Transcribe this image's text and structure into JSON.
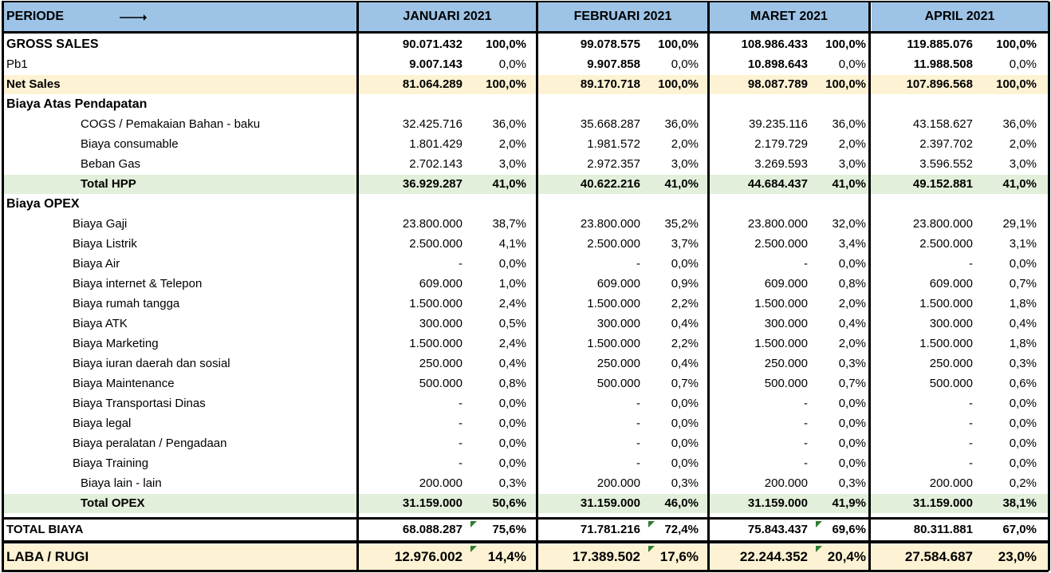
{
  "header": {
    "periode": "PERIODE",
    "months": [
      "JANUARI 2021",
      "FEBRUARI 2021",
      "MARET 2021",
      "APRIL 2021"
    ]
  },
  "rows": [
    {
      "label": "GROSS SALES",
      "style": "bold",
      "bg": "",
      "indent": 0,
      "cells": [
        [
          "90.071.432",
          "100,0%"
        ],
        [
          "99.078.575",
          "100,0%"
        ],
        [
          "108.986.433",
          "100,0%"
        ],
        [
          "119.885.076",
          "100,0%"
        ]
      ]
    },
    {
      "label": "Pb1",
      "style": "normal-boldnum",
      "bg": "",
      "indent": 0,
      "cells": [
        [
          "9.007.143",
          "0,0%"
        ],
        [
          "9.907.858",
          "0,0%"
        ],
        [
          "10.898.643",
          "0,0%"
        ],
        [
          "11.988.508",
          "0,0%"
        ]
      ]
    },
    {
      "label": "Net Sales",
      "style": "bold",
      "bg": "#fdf2d3",
      "indent": 0,
      "cells": [
        [
          "81.064.289",
          "100,0%"
        ],
        [
          "89.170.718",
          "100,0%"
        ],
        [
          "98.087.789",
          "100,0%"
        ],
        [
          "107.896.568",
          "100,0%"
        ]
      ]
    },
    {
      "label": "Biaya Atas Pendapatan",
      "style": "section",
      "bg": "",
      "indent": 0,
      "cells": [
        [
          "",
          ""
        ],
        [
          "",
          ""
        ],
        [
          "",
          ""
        ],
        [
          "",
          ""
        ]
      ]
    },
    {
      "label": "COGS / Pemakaian Bahan - baku",
      "style": "normal",
      "bg": "",
      "indent": 93,
      "cells": [
        [
          "32.425.716",
          "36,0%"
        ],
        [
          "35.668.287",
          "36,0%"
        ],
        [
          "39.235.116",
          "36,0%"
        ],
        [
          "43.158.627",
          "36,0%"
        ]
      ]
    },
    {
      "label": "Biaya consumable",
      "style": "normal",
      "bg": "",
      "indent": 93,
      "cells": [
        [
          "1.801.429",
          "2,0%"
        ],
        [
          "1.981.572",
          "2,0%"
        ],
        [
          "2.179.729",
          "2,0%"
        ],
        [
          "2.397.702",
          "2,0%"
        ]
      ]
    },
    {
      "label": "Beban Gas",
      "style": "normal",
      "bg": "",
      "indent": 93,
      "cells": [
        [
          "2.702.143",
          "3,0%"
        ],
        [
          "2.972.357",
          "3,0%"
        ],
        [
          "3.269.593",
          "3,0%"
        ],
        [
          "3.596.552",
          "3,0%"
        ]
      ]
    },
    {
      "label": "Total HPP",
      "style": "bold",
      "bg": "#e2efda",
      "indent": 93,
      "cells": [
        [
          "36.929.287",
          "41,0%"
        ],
        [
          "40.622.216",
          "41,0%"
        ],
        [
          "44.684.437",
          "41,0%"
        ],
        [
          "49.152.881",
          "41,0%"
        ]
      ]
    },
    {
      "label": "Biaya OPEX",
      "style": "section",
      "bg": "",
      "indent": 0,
      "cells": [
        [
          "",
          ""
        ],
        [
          "",
          ""
        ],
        [
          "",
          ""
        ],
        [
          "",
          ""
        ]
      ]
    },
    {
      "label": "Biaya Gaji",
      "style": "normal",
      "bg": "",
      "indent": 83,
      "cells": [
        [
          "23.800.000",
          "38,7%"
        ],
        [
          "23.800.000",
          "35,2%"
        ],
        [
          "23.800.000",
          "32,0%"
        ],
        [
          "23.800.000",
          "29,1%"
        ]
      ]
    },
    {
      "label": "Biaya Listrik",
      "style": "normal",
      "bg": "",
      "indent": 83,
      "cells": [
        [
          "2.500.000",
          "4,1%"
        ],
        [
          "2.500.000",
          "3,7%"
        ],
        [
          "2.500.000",
          "3,4%"
        ],
        [
          "2.500.000",
          "3,1%"
        ]
      ]
    },
    {
      "label": "Biaya Air",
      "style": "normal",
      "bg": "",
      "indent": 83,
      "cells": [
        [
          "-",
          "0,0%"
        ],
        [
          "-",
          "0,0%"
        ],
        [
          "-",
          "0,0%"
        ],
        [
          "-",
          "0,0%"
        ]
      ]
    },
    {
      "label": "Biaya internet & Telepon",
      "style": "normal",
      "bg": "",
      "indent": 83,
      "cells": [
        [
          "609.000",
          "1,0%"
        ],
        [
          "609.000",
          "0,9%"
        ],
        [
          "609.000",
          "0,8%"
        ],
        [
          "609.000",
          "0,7%"
        ]
      ]
    },
    {
      "label": "Biaya rumah tangga",
      "style": "normal",
      "bg": "",
      "indent": 83,
      "cells": [
        [
          "1.500.000",
          "2,4%"
        ],
        [
          "1.500.000",
          "2,2%"
        ],
        [
          "1.500.000",
          "2,0%"
        ],
        [
          "1.500.000",
          "1,8%"
        ]
      ]
    },
    {
      "label": "Biaya ATK",
      "style": "normal",
      "bg": "",
      "indent": 83,
      "cells": [
        [
          "300.000",
          "0,5%"
        ],
        [
          "300.000",
          "0,4%"
        ],
        [
          "300.000",
          "0,4%"
        ],
        [
          "300.000",
          "0,4%"
        ]
      ]
    },
    {
      "label": "Biaya Marketing",
      "style": "normal",
      "bg": "",
      "indent": 83,
      "cells": [
        [
          "1.500.000",
          "2,4%"
        ],
        [
          "1.500.000",
          "2,2%"
        ],
        [
          "1.500.000",
          "2,0%"
        ],
        [
          "1.500.000",
          "1,8%"
        ]
      ]
    },
    {
      "label": "Biaya iuran daerah dan sosial",
      "style": "normal",
      "bg": "",
      "indent": 83,
      "cells": [
        [
          "250.000",
          "0,4%"
        ],
        [
          "250.000",
          "0,4%"
        ],
        [
          "250.000",
          "0,3%"
        ],
        [
          "250.000",
          "0,3%"
        ]
      ]
    },
    {
      "label": "Biaya Maintenance",
      "style": "normal",
      "bg": "",
      "indent": 83,
      "cells": [
        [
          "500.000",
          "0,8%"
        ],
        [
          "500.000",
          "0,7%"
        ],
        [
          "500.000",
          "0,7%"
        ],
        [
          "500.000",
          "0,6%"
        ]
      ]
    },
    {
      "label": "Biaya Transportasi Dinas",
      "style": "normal",
      "bg": "",
      "indent": 83,
      "cells": [
        [
          "-",
          "0,0%"
        ],
        [
          "-",
          "0,0%"
        ],
        [
          "-",
          "0,0%"
        ],
        [
          "-",
          "0,0%"
        ]
      ]
    },
    {
      "label": "Biaya legal",
      "style": "normal",
      "bg": "",
      "indent": 83,
      "cells": [
        [
          "-",
          "0,0%"
        ],
        [
          "-",
          "0,0%"
        ],
        [
          "-",
          "0,0%"
        ],
        [
          "-",
          "0,0%"
        ]
      ]
    },
    {
      "label": "Biaya peralatan / Pengadaan",
      "style": "normal",
      "bg": "",
      "indent": 83,
      "cells": [
        [
          "-",
          "0,0%"
        ],
        [
          "-",
          "0,0%"
        ],
        [
          "-",
          "0,0%"
        ],
        [
          "-",
          "0,0%"
        ]
      ]
    },
    {
      "label": "Biaya Training",
      "style": "normal",
      "bg": "",
      "indent": 83,
      "cells": [
        [
          "-",
          "0,0%"
        ],
        [
          "-",
          "0,0%"
        ],
        [
          "-",
          "0,0%"
        ],
        [
          "-",
          "0,0%"
        ]
      ]
    },
    {
      "label": "Biaya lain - lain",
      "style": "normal",
      "bg": "",
      "indent": 93,
      "cells": [
        [
          "200.000",
          "0,3%"
        ],
        [
          "200.000",
          "0,3%"
        ],
        [
          "200.000",
          "0,3%"
        ],
        [
          "200.000",
          "0,2%"
        ]
      ]
    },
    {
      "label": "Total OPEX",
      "style": "bold",
      "bg": "#e2efda",
      "indent": 93,
      "cells": [
        [
          "31.159.000",
          "50,6%"
        ],
        [
          "31.159.000",
          "46,0%"
        ],
        [
          "31.159.000",
          "41,9%"
        ],
        [
          "31.159.000",
          "38,1%"
        ]
      ]
    }
  ],
  "total_biaya": {
    "label": "TOTAL BIAYA",
    "cells": [
      [
        "68.088.287",
        "75,6%"
      ],
      [
        "71.781.216",
        "72,4%"
      ],
      [
        "75.843.437",
        "69,6%"
      ],
      [
        "80.311.881",
        "67,0%"
      ]
    ]
  },
  "laba_rugi": {
    "label": "LABA / RUGI",
    "cells": [
      [
        "12.976.002",
        "14,4%"
      ],
      [
        "17.389.502",
        "17,6%"
      ],
      [
        "22.244.352",
        "20,4%"
      ],
      [
        "27.584.687",
        "23,0%"
      ]
    ]
  },
  "colors": {
    "header": "#9dc3e6",
    "net_sales": "#fdf2d3",
    "total": "#e2efda",
    "laba": "#fdf2d3",
    "marker": "#2e7d32"
  },
  "icons": {
    "header_arrow": "right-arrow-icon"
  }
}
